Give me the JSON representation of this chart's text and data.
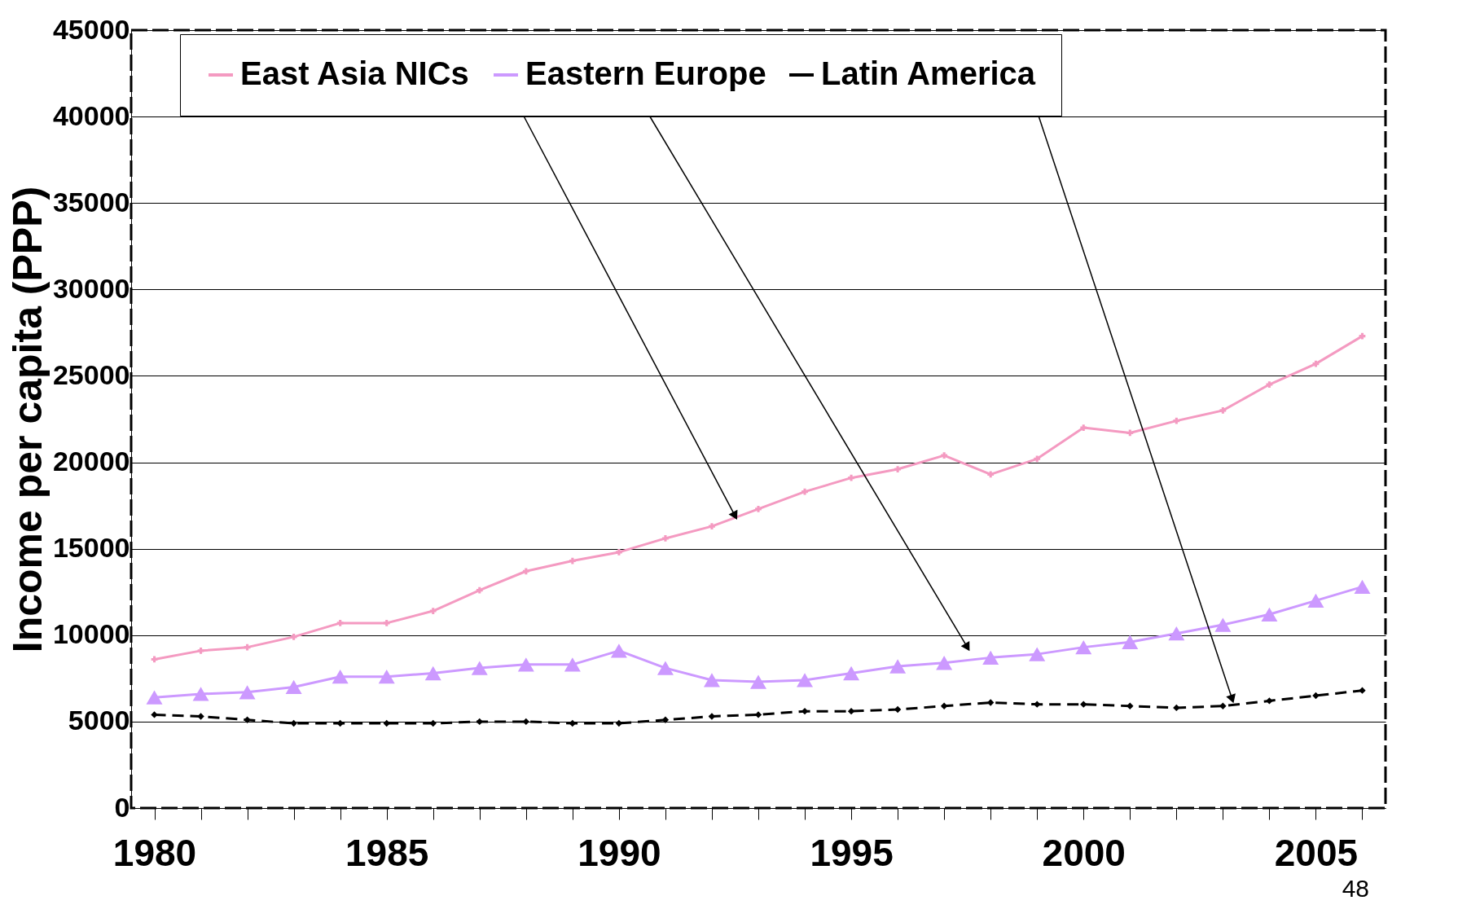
{
  "chart_data": {
    "type": "line",
    "ylabel": "Income per capita (PPP)",
    "x": [
      1980,
      1981,
      1982,
      1983,
      1984,
      1985,
      1986,
      1987,
      1988,
      1989,
      1990,
      1991,
      1992,
      1993,
      1994,
      1995,
      1996,
      1997,
      1998,
      1999,
      2000,
      2001,
      2002,
      2003,
      2004,
      2005,
      2006
    ],
    "series": [
      {
        "name": "East Asia NICs",
        "color": "#f49ac1",
        "marker": "cross",
        "line_style": "solid",
        "values": [
          8600,
          9100,
          9300,
          9900,
          10700,
          10700,
          11400,
          12600,
          13700,
          14300,
          14800,
          15600,
          16300,
          17300,
          18300,
          19100,
          19600,
          20400,
          19300,
          20200,
          22000,
          21700,
          22400,
          23000,
          24500,
          25700,
          27300
        ]
      },
      {
        "name": "Eastern Europe",
        "color": "#cc99ff",
        "marker": "triangle",
        "line_style": "solid",
        "values": [
          6400,
          6600,
          6700,
          7000,
          7600,
          7600,
          7800,
          8100,
          8300,
          8300,
          9100,
          8100,
          7400,
          7300,
          7400,
          7800,
          8200,
          8400,
          8700,
          8900,
          9300,
          9600,
          10100,
          10600,
          11200,
          12000,
          12800
        ]
      },
      {
        "name": "Latin America",
        "color": "#000000",
        "marker": "diamond",
        "line_style": "dashed",
        "values": [
          5400,
          5300,
          5100,
          4900,
          4900,
          4900,
          4900,
          5000,
          5000,
          4900,
          4900,
          5100,
          5300,
          5400,
          5600,
          5600,
          5700,
          5900,
          6100,
          6000,
          6000,
          5900,
          5800,
          5900,
          6200,
          6500,
          6800
        ]
      }
    ],
    "xlim": [
      1979.5,
      2006.5
    ],
    "xticks": [
      1980,
      {
        "value": 1981,
        "label": null
      },
      {
        "value": 1982,
        "label": null
      },
      {
        "value": 1983,
        "label": null
      },
      {
        "value": 1984,
        "label": null
      },
      1985,
      {
        "value": 1986,
        "label": null
      },
      {
        "value": 1987,
        "label": null
      },
      {
        "value": 1988,
        "label": null
      },
      {
        "value": 1989,
        "label": null
      },
      1990,
      {
        "value": 1991,
        "label": null
      },
      {
        "value": 1992,
        "label": null
      },
      {
        "value": 1993,
        "label": null
      },
      {
        "value": 1994,
        "label": null
      },
      1995,
      {
        "value": 1996,
        "label": null
      },
      {
        "value": 1997,
        "label": null
      },
      {
        "value": 1998,
        "label": null
      },
      {
        "value": 1999,
        "label": null
      },
      2000,
      {
        "value": 2001,
        "label": null
      },
      {
        "value": 2002,
        "label": null
      },
      {
        "value": 2003,
        "label": null
      },
      {
        "value": 2004,
        "label": null
      },
      2005,
      {
        "value": 2006,
        "label": null
      }
    ],
    "ylim": [
      0,
      45000
    ],
    "yticks": [
      0,
      5000,
      10000,
      15000,
      20000,
      25000,
      30000,
      35000,
      40000,
      45000
    ],
    "grid": "y",
    "legend": "top",
    "annotations": [
      "48"
    ]
  }
}
